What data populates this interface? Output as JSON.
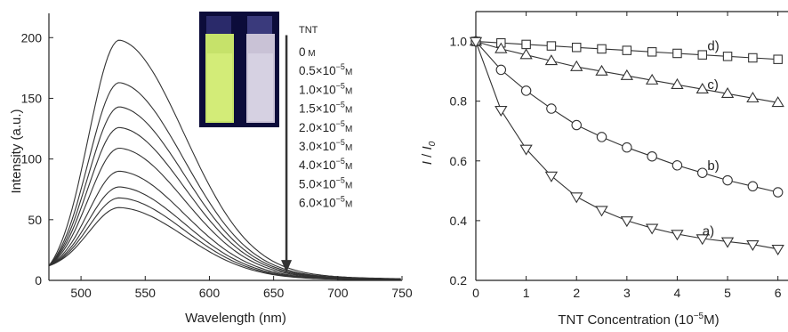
{
  "chart_data": [
    {
      "type": "line",
      "xlabel": "Wavelength (nm)",
      "ylabel": "Intensity (a.u.)",
      "xlim": [
        475,
        750
      ],
      "ylim": [
        0,
        220
      ],
      "xticks": [
        500,
        550,
        600,
        650,
        700,
        750
      ],
      "yticks": [
        0,
        50,
        100,
        150,
        200
      ],
      "legend_title": "TNT",
      "legend_placement": "upper-right inside plot, with downward arrow",
      "legend_entries": [
        {
          "mant": "0",
          "exp": "",
          "unit": "M"
        },
        {
          "mant": "0.5×10",
          "exp": "−5",
          "unit": "M"
        },
        {
          "mant": "1.0×10",
          "exp": "−5",
          "unit": "M"
        },
        {
          "mant": "1.5×10",
          "exp": "−5",
          "unit": "M"
        },
        {
          "mant": "2.0×10",
          "exp": "−5",
          "unit": "M"
        },
        {
          "mant": "3.0×10",
          "exp": "−5",
          "unit": "M"
        },
        {
          "mant": "4.0×10",
          "exp": "−5",
          "unit": "M"
        },
        {
          "mant": "5.0×10",
          "exp": "−5",
          "unit": "M"
        },
        {
          "mant": "6.0×10",
          "exp": "−5",
          "unit": "M"
        }
      ],
      "peak_wavelength": 530,
      "start_value_at_475nm": 12,
      "series": [
        {
          "conc": 0,
          "peak": 198
        },
        {
          "conc": 0.5,
          "peak": 163
        },
        {
          "conc": 1.0,
          "peak": 143
        },
        {
          "conc": 1.5,
          "peak": 126
        },
        {
          "conc": 2.0,
          "peak": 109
        },
        {
          "conc": 3.0,
          "peak": 90
        },
        {
          "conc": 4.0,
          "peak": 77
        },
        {
          "conc": 5.0,
          "peak": 68
        },
        {
          "conc": 6.0,
          "peak": 60
        }
      ],
      "arrow": {
        "x": 660,
        "y_start": 202,
        "y_end": 8
      },
      "inset": {
        "description": "photo of two cuvettes",
        "left_cuvette_color": "#c6e26a",
        "right_cuvette_color": "#c9c2d6",
        "background_color": "#0c0c3a"
      }
    },
    {
      "type": "line",
      "xlabel_main": "TNT Concentration (10",
      "xlabel_exp": "−5",
      "xlabel_tail": "M)",
      "ylabel_main": "I",
      "ylabel_sep": " / ",
      "ylabel_sub_base": "I",
      "ylabel_sub": "0",
      "xlim": [
        0,
        6.2
      ],
      "ylim": [
        0.2,
        1.1
      ],
      "xticks": [
        0,
        1,
        2,
        3,
        4,
        5,
        6
      ],
      "yticks": [
        0.2,
        0.4,
        0.6,
        0.8,
        1.0
      ],
      "ytick_labels": [
        "0.2",
        "0.4",
        "0.6",
        "0.8",
        "1.0"
      ],
      "x": [
        0,
        0.5,
        1.0,
        1.5,
        2.0,
        2.5,
        3.0,
        3.5,
        4.0,
        4.5,
        5.0,
        5.5,
        6.0
      ],
      "series": [
        {
          "label": "d)",
          "marker": "square",
          "values": [
            1.0,
            0.995,
            0.99,
            0.985,
            0.98,
            0.975,
            0.97,
            0.965,
            0.96,
            0.955,
            0.95,
            0.945,
            0.94
          ]
        },
        {
          "label": "c)",
          "marker": "triangle-up",
          "values": [
            1.0,
            0.975,
            0.955,
            0.935,
            0.915,
            0.9,
            0.885,
            0.87,
            0.855,
            0.84,
            0.825,
            0.81,
            0.795
          ]
        },
        {
          "label": "b)",
          "marker": "circle",
          "values": [
            1.0,
            0.905,
            0.835,
            0.775,
            0.72,
            0.68,
            0.645,
            0.615,
            0.585,
            0.56,
            0.535,
            0.515,
            0.495
          ]
        },
        {
          "label": "a)",
          "marker": "triangle-down",
          "values": [
            1.0,
            0.77,
            0.64,
            0.55,
            0.48,
            0.435,
            0.4,
            0.375,
            0.355,
            0.34,
            0.33,
            0.32,
            0.305
          ]
        }
      ]
    }
  ]
}
